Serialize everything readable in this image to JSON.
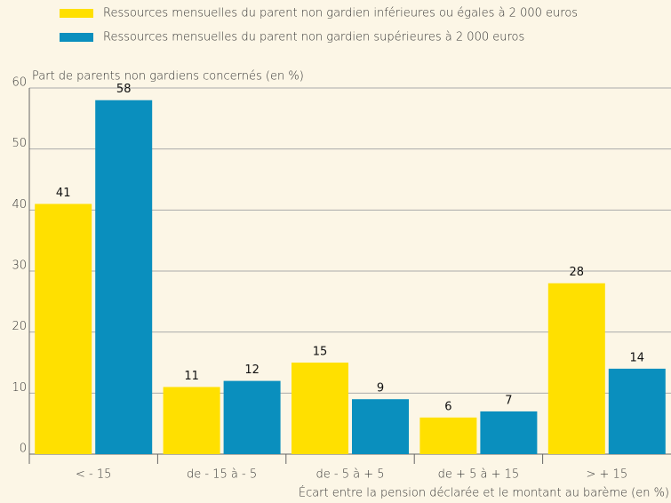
{
  "chart_data": {
    "type": "bar",
    "y_axis_label": "Part de parents non gardiens concernés (en %)",
    "x_axis_label": "Écart entre la pension déclarée et le montant au barème (en %)",
    "categories": [
      "< - 15",
      "de - 15 à - 5",
      "de - 5 à + 5",
      "de + 5 à + 15",
      "> + 15"
    ],
    "series": [
      {
        "name": "Ressources mensuelles du parent non gardien inférieures ou égales à 2 000 euros",
        "color": "#ffe000",
        "values": [
          41,
          11,
          15,
          6,
          28
        ]
      },
      {
        "name": "Ressources mensuelles du parent non gardien supérieures à 2 000 euros",
        "color": "#0a8fbe",
        "values": [
          58,
          12,
          9,
          7,
          14
        ]
      }
    ],
    "ylim": [
      0,
      60
    ],
    "yticks": [
      0,
      10,
      20,
      30,
      40,
      50,
      60
    ],
    "grid": true,
    "legend": "top"
  }
}
